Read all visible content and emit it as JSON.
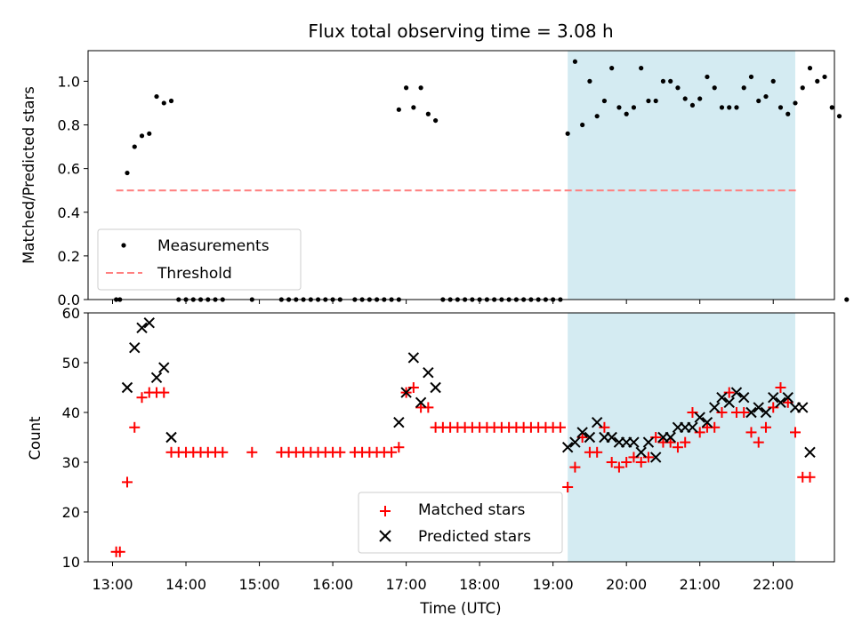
{
  "chart_data": [
    {
      "type": "scatter",
      "title": "Flux total observing time = 3.08 h",
      "xlabel": "",
      "ylabel": "Matched/Predicted stars",
      "xlim": [
        "12:40",
        "22:50"
      ],
      "ylim": [
        0,
        1.14
      ],
      "yticks": [
        "0.0",
        "0.2",
        "0.4",
        "0.6",
        "0.8",
        "1.0"
      ],
      "shaded_region": {
        "start": "19:12",
        "end": "22:18",
        "color": "#add8e6"
      },
      "legend": {
        "position": "lower-left",
        "entries": [
          "Measurements",
          "Threshold"
        ]
      },
      "threshold": {
        "name": "Threshold",
        "value": 0.5,
        "x_start": "13:03",
        "x_end": "22:20",
        "color": "#ff7f7f",
        "style": "dashed"
      },
      "series": [
        {
          "name": "Measurements",
          "color": "#000000",
          "marker": "dot",
          "points": [
            [
              "13:03",
              0
            ],
            [
              "13:06",
              0
            ],
            [
              "13:12",
              0.58
            ],
            [
              "13:18",
              0.7
            ],
            [
              "13:24",
              0.75
            ],
            [
              "13:30",
              0.76
            ],
            [
              "13:36",
              0.93
            ],
            [
              "13:42",
              0.9
            ],
            [
              "13:48",
              0.91
            ],
            [
              "13:54",
              0
            ],
            [
              "14:00",
              0
            ],
            [
              "14:06",
              0
            ],
            [
              "14:12",
              0
            ],
            [
              "14:18",
              0
            ],
            [
              "14:24",
              0
            ],
            [
              "14:30",
              0
            ],
            [
              "14:54",
              0
            ],
            [
              "15:18",
              0
            ],
            [
              "15:24",
              0
            ],
            [
              "15:30",
              0
            ],
            [
              "15:36",
              0
            ],
            [
              "15:42",
              0
            ],
            [
              "15:48",
              0
            ],
            [
              "15:54",
              0
            ],
            [
              "16:00",
              0
            ],
            [
              "16:06",
              0
            ],
            [
              "16:18",
              0
            ],
            [
              "16:24",
              0
            ],
            [
              "16:30",
              0
            ],
            [
              "16:36",
              0
            ],
            [
              "16:42",
              0
            ],
            [
              "16:48",
              0
            ],
            [
              "16:54",
              0
            ],
            [
              "16:54",
              0.87
            ],
            [
              "17:00",
              0.97
            ],
            [
              "17:06",
              0.88
            ],
            [
              "17:12",
              0.97
            ],
            [
              "17:18",
              0.85
            ],
            [
              "17:24",
              0.82
            ],
            [
              "17:30",
              0
            ],
            [
              "17:36",
              0
            ],
            [
              "17:42",
              0
            ],
            [
              "17:48",
              0
            ],
            [
              "17:54",
              0
            ],
            [
              "18:00",
              0
            ],
            [
              "18:06",
              0
            ],
            [
              "18:12",
              0
            ],
            [
              "18:18",
              0
            ],
            [
              "18:24",
              0
            ],
            [
              "18:30",
              0
            ],
            [
              "18:36",
              0
            ],
            [
              "18:42",
              0
            ],
            [
              "18:48",
              0
            ],
            [
              "18:54",
              0
            ],
            [
              "19:00",
              0
            ],
            [
              "19:06",
              0
            ],
            [
              "19:12",
              0.76
            ],
            [
              "19:18",
              1.09
            ],
            [
              "19:24",
              0.8
            ],
            [
              "19:30",
              1.0
            ],
            [
              "19:36",
              0.84
            ],
            [
              "19:42",
              0.91
            ],
            [
              "19:48",
              1.06
            ],
            [
              "19:54",
              0.88
            ],
            [
              "20:00",
              0.85
            ],
            [
              "20:06",
              0.88
            ],
            [
              "20:12",
              1.06
            ],
            [
              "20:18",
              0.91
            ],
            [
              "20:24",
              0.91
            ],
            [
              "20:30",
              1.0
            ],
            [
              "20:36",
              1.0
            ],
            [
              "20:42",
              0.97
            ],
            [
              "20:48",
              0.92
            ],
            [
              "20:54",
              0.89
            ],
            [
              "21:00",
              0.92
            ],
            [
              "21:06",
              1.02
            ],
            [
              "21:12",
              0.97
            ],
            [
              "21:18",
              0.88
            ],
            [
              "21:24",
              0.88
            ],
            [
              "21:30",
              0.88
            ],
            [
              "21:36",
              0.97
            ],
            [
              "21:42",
              1.02
            ],
            [
              "21:48",
              0.91
            ],
            [
              "21:54",
              0.93
            ],
            [
              "22:00",
              1.0
            ],
            [
              "22:06",
              0.88
            ],
            [
              "22:12",
              0.85
            ],
            [
              "22:18",
              0.9
            ],
            [
              "22:24",
              0.97
            ],
            [
              "22:30",
              1.06
            ],
            [
              "22:36",
              1.0
            ],
            [
              "22:42",
              1.02
            ],
            [
              "22:48",
              0.88
            ],
            [
              "22:54",
              0.84
            ],
            [
              "23:00",
              0
            ]
          ]
        }
      ]
    },
    {
      "type": "scatter",
      "title": "",
      "xlabel": "Time (UTC)",
      "ylabel": "Count",
      "xlim": [
        "12:40",
        "22:50"
      ],
      "ylim": [
        10,
        60
      ],
      "yticks": [
        "10",
        "20",
        "30",
        "40",
        "50",
        "60"
      ],
      "xticks": [
        "13:00",
        "14:00",
        "15:00",
        "16:00",
        "17:00",
        "18:00",
        "19:00",
        "20:00",
        "21:00",
        "22:00"
      ],
      "shaded_region": {
        "start": "19:12",
        "end": "22:18",
        "color": "#add8e6"
      },
      "legend": {
        "position": "lower-center",
        "entries": [
          "Matched stars",
          "Predicted stars"
        ]
      },
      "series": [
        {
          "name": "Matched stars",
          "color": "#ff0000",
          "marker": "plus",
          "points": [
            [
              "13:03",
              12
            ],
            [
              "13:06",
              12
            ],
            [
              "13:12",
              26
            ],
            [
              "13:18",
              37
            ],
            [
              "13:24",
              43
            ],
            [
              "13:30",
              44
            ],
            [
              "13:36",
              44
            ],
            [
              "13:42",
              44
            ],
            [
              "13:48",
              32
            ],
            [
              "13:54",
              32
            ],
            [
              "14:00",
              32
            ],
            [
              "14:06",
              32
            ],
            [
              "14:12",
              32
            ],
            [
              "14:18",
              32
            ],
            [
              "14:24",
              32
            ],
            [
              "14:30",
              32
            ],
            [
              "14:54",
              32
            ],
            [
              "15:18",
              32
            ],
            [
              "15:24",
              32
            ],
            [
              "15:30",
              32
            ],
            [
              "15:36",
              32
            ],
            [
              "15:42",
              32
            ],
            [
              "15:48",
              32
            ],
            [
              "15:54",
              32
            ],
            [
              "16:00",
              32
            ],
            [
              "16:06",
              32
            ],
            [
              "16:18",
              32
            ],
            [
              "16:24",
              32
            ],
            [
              "16:30",
              32
            ],
            [
              "16:36",
              32
            ],
            [
              "16:42",
              32
            ],
            [
              "16:48",
              32
            ],
            [
              "16:54",
              33
            ],
            [
              "17:00",
              44
            ],
            [
              "17:06",
              45
            ],
            [
              "17:12",
              41
            ],
            [
              "17:18",
              41
            ],
            [
              "17:24",
              37
            ],
            [
              "17:30",
              37
            ],
            [
              "17:36",
              37
            ],
            [
              "17:42",
              37
            ],
            [
              "17:48",
              37
            ],
            [
              "17:54",
              37
            ],
            [
              "18:00",
              37
            ],
            [
              "18:06",
              37
            ],
            [
              "18:12",
              37
            ],
            [
              "18:18",
              37
            ],
            [
              "18:24",
              37
            ],
            [
              "18:30",
              37
            ],
            [
              "18:36",
              37
            ],
            [
              "18:42",
              37
            ],
            [
              "18:48",
              37
            ],
            [
              "18:54",
              37
            ],
            [
              "19:00",
              37
            ],
            [
              "19:06",
              37
            ],
            [
              "19:12",
              25
            ],
            [
              "19:18",
              29
            ],
            [
              "19:24",
              35
            ],
            [
              "19:30",
              32
            ],
            [
              "19:36",
              32
            ],
            [
              "19:42",
              37
            ],
            [
              "19:48",
              30
            ],
            [
              "19:54",
              29
            ],
            [
              "20:00",
              30
            ],
            [
              "20:06",
              31
            ],
            [
              "20:12",
              30
            ],
            [
              "20:18",
              31
            ],
            [
              "20:24",
              35
            ],
            [
              "20:30",
              34
            ],
            [
              "20:36",
              34
            ],
            [
              "20:42",
              33
            ],
            [
              "20:48",
              34
            ],
            [
              "20:54",
              40
            ],
            [
              "21:00",
              36
            ],
            [
              "21:06",
              37
            ],
            [
              "21:12",
              37
            ],
            [
              "21:18",
              40
            ],
            [
              "21:24",
              44
            ],
            [
              "21:30",
              40
            ],
            [
              "21:36",
              40
            ],
            [
              "21:42",
              36
            ],
            [
              "21:48",
              34
            ],
            [
              "21:54",
              37
            ],
            [
              "22:00",
              41
            ],
            [
              "22:06",
              45
            ],
            [
              "22:12",
              42
            ],
            [
              "22:18",
              36
            ],
            [
              "22:24",
              27
            ],
            [
              "22:30",
              27
            ]
          ]
        },
        {
          "name": "Predicted stars",
          "color": "#000000",
          "marker": "x",
          "points": [
            [
              "13:12",
              45
            ],
            [
              "13:18",
              53
            ],
            [
              "13:24",
              57
            ],
            [
              "13:30",
              58
            ],
            [
              "13:36",
              47
            ],
            [
              "13:42",
              49
            ],
            [
              "13:48",
              35
            ],
            [
              "16:54",
              38
            ],
            [
              "17:00",
              44
            ],
            [
              "17:06",
              51
            ],
            [
              "17:12",
              42
            ],
            [
              "17:18",
              48
            ],
            [
              "17:24",
              45
            ],
            [
              "19:12",
              33
            ],
            [
              "19:18",
              34
            ],
            [
              "19:24",
              36
            ],
            [
              "19:30",
              35
            ],
            [
              "19:36",
              38
            ],
            [
              "19:42",
              35
            ],
            [
              "19:48",
              35
            ],
            [
              "19:54",
              34
            ],
            [
              "20:00",
              34
            ],
            [
              "20:06",
              34
            ],
            [
              "20:12",
              32
            ],
            [
              "20:18",
              34
            ],
            [
              "20:24",
              31
            ],
            [
              "20:30",
              35
            ],
            [
              "20:36",
              35
            ],
            [
              "20:42",
              37
            ],
            [
              "20:48",
              37
            ],
            [
              "20:54",
              37
            ],
            [
              "21:00",
              39
            ],
            [
              "21:06",
              38
            ],
            [
              "21:12",
              41
            ],
            [
              "21:18",
              43
            ],
            [
              "21:24",
              42
            ],
            [
              "21:30",
              44
            ],
            [
              "21:36",
              43
            ],
            [
              "21:42",
              40
            ],
            [
              "21:48",
              41
            ],
            [
              "21:54",
              40
            ],
            [
              "22:00",
              43
            ],
            [
              "22:06",
              42
            ],
            [
              "22:12",
              43
            ],
            [
              "22:18",
              41
            ],
            [
              "22:24",
              41
            ],
            [
              "22:30",
              32
            ]
          ]
        }
      ]
    }
  ]
}
